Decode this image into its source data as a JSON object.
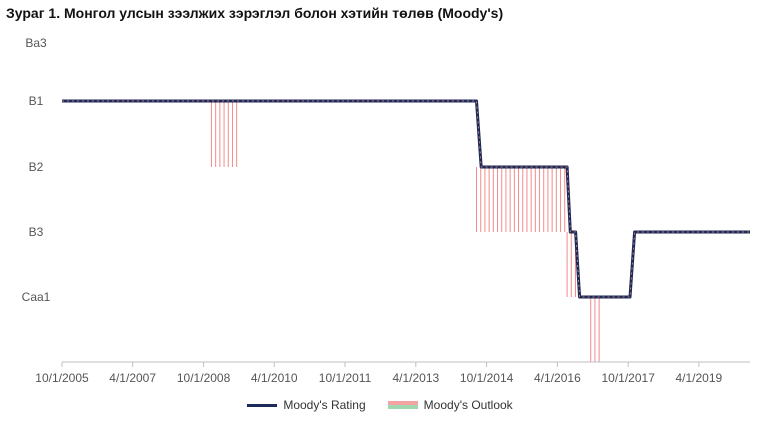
{
  "title": "Зураг 1. Монгол улсын зээлжих зэрэглэл болон хэтийн төлөв (Moody's)",
  "colors": {
    "rating": "#1b2a57",
    "outlook_negative": "#f28b8b",
    "outlook_positive": "#9fd8b0",
    "axis": "#bfbfbf",
    "text": "#555555"
  },
  "chart_data": {
    "type": "line",
    "title": "Зураг 1. Монгол улсын зээлжих зэрэглэл болон хэтийн төлөв (Moody's)",
    "y_levels": [
      "Ba3",
      "B1",
      "B2",
      "B3",
      "Caa1"
    ],
    "x_ticks": [
      "10/1/2005",
      "4/1/2007",
      "10/1/2008",
      "4/1/2010",
      "10/1/2011",
      "4/1/2013",
      "10/1/2014",
      "4/1/2016",
      "10/1/2017",
      "4/1/2019"
    ],
    "xlim": [
      "2005-10-01",
      "2020-05-01"
    ],
    "legend": {
      "position": "bottom"
    },
    "series": [
      {
        "name": "Moody's Rating",
        "points": [
          {
            "date": "2005-10-01",
            "rating": "B1"
          },
          {
            "date": "2014-07-15",
            "rating": "B1"
          },
          {
            "date": "2014-08-20",
            "rating": "B2"
          },
          {
            "date": "2016-06-15",
            "rating": "B2"
          },
          {
            "date": "2016-07-10",
            "rating": "B3"
          },
          {
            "date": "2016-08-20",
            "rating": "B3"
          },
          {
            "date": "2016-09-20",
            "rating": "Caa1"
          },
          {
            "date": "2017-10-15",
            "rating": "Caa1"
          },
          {
            "date": "2017-11-20",
            "rating": "B3"
          },
          {
            "date": "2020-05-01",
            "rating": "B3"
          }
        ]
      },
      {
        "name": "Moody's Outlook",
        "negative_periods": [
          {
            "start": "2008-12-01",
            "end": "2009-07-15",
            "from": "B1",
            "to": "B2"
          },
          {
            "start": "2014-07-15",
            "end": "2016-06-15",
            "from": "B2",
            "to": "B3"
          },
          {
            "start": "2016-06-15",
            "end": "2016-08-20",
            "from": "B3",
            "to": "Caa1"
          },
          {
            "start": "2016-12-15",
            "end": "2017-03-20",
            "from": "Caa1",
            "to": "below Caa1"
          }
        ]
      }
    ]
  }
}
